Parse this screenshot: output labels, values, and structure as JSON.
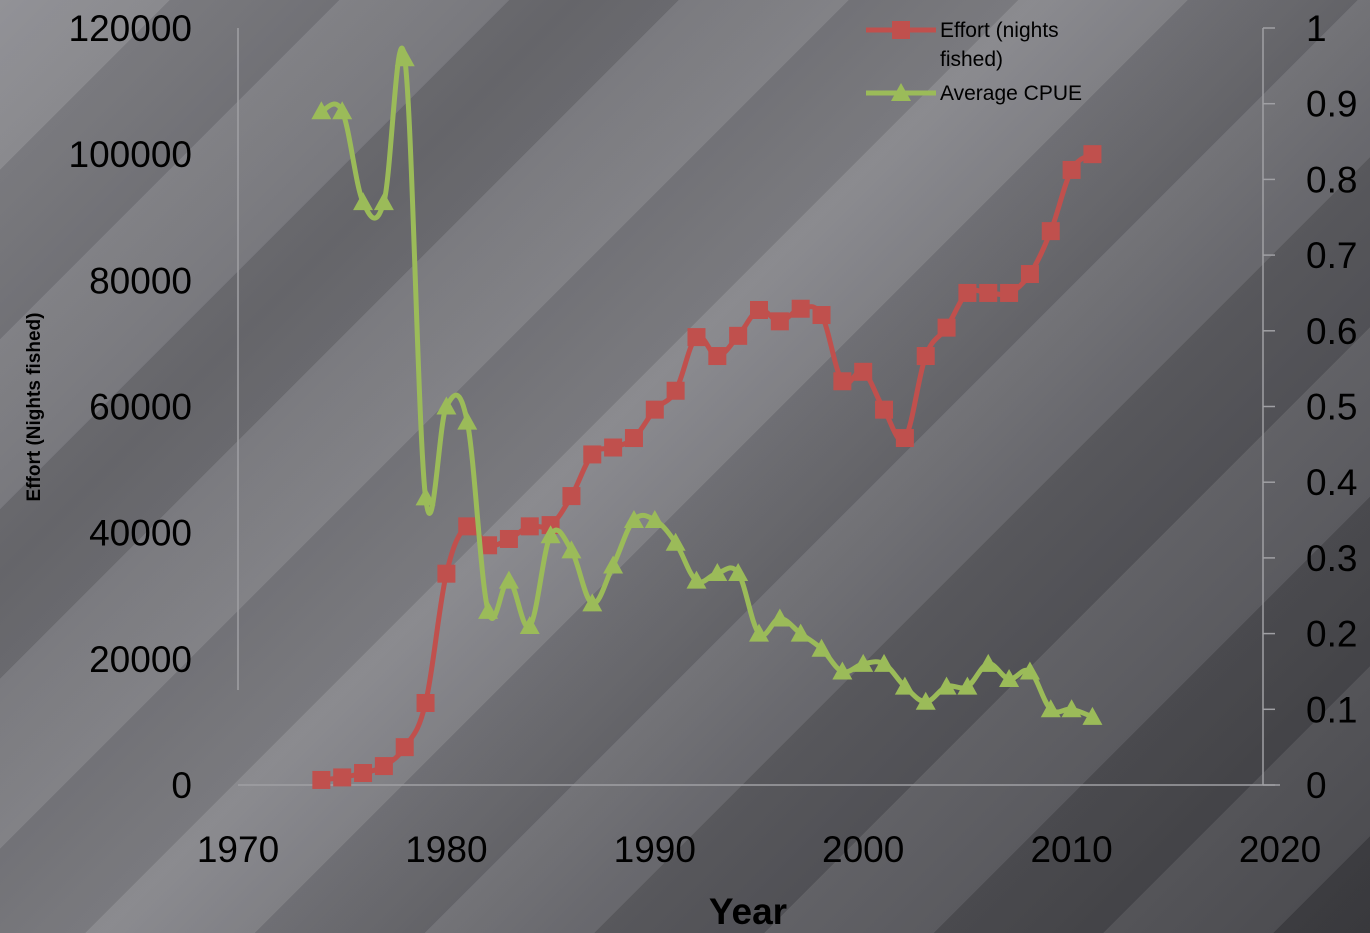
{
  "chart_data": {
    "type": "line",
    "title": "",
    "xlabel": "Year",
    "ylabel": "Effort (Nights fished)",
    "y2label": "",
    "xlim": [
      1970,
      2020
    ],
    "ylim": [
      0,
      120000
    ],
    "y2lim": [
      0,
      1
    ],
    "x_ticks": [
      1970,
      1980,
      1990,
      2000,
      2010,
      2020
    ],
    "y_ticks": [
      0,
      20000,
      40000,
      60000,
      80000,
      100000,
      120000
    ],
    "y2_ticks": [
      0,
      0.1,
      0.2,
      0.3,
      0.4,
      0.5,
      0.6,
      0.7,
      0.8,
      0.9,
      1
    ],
    "legend_position": "top-right",
    "grid": false,
    "series": [
      {
        "name": "Effort (nights fished)",
        "axis": "left",
        "color": "#c0504d",
        "marker": "square",
        "x": [
          1974,
          1975,
          1976,
          1977,
          1978,
          1979,
          1980,
          1981,
          1982,
          1983,
          1984,
          1985,
          1986,
          1987,
          1988,
          1989,
          1990,
          1991,
          1992,
          1993,
          1994,
          1995,
          1996,
          1997,
          1998,
          1999,
          2000,
          2001,
          2002,
          2003,
          2004,
          2005,
          2006,
          2007,
          2008,
          2009,
          2010,
          2011
        ],
        "values": [
          800,
          1200,
          1900,
          3000,
          6000,
          13000,
          33500,
          41000,
          38000,
          39000,
          41000,
          41200,
          45800,
          52400,
          53500,
          55000,
          59500,
          62500,
          71000,
          68000,
          71200,
          75300,
          73500,
          75500,
          74500,
          64000,
          65500,
          59500,
          55000,
          68000,
          72500,
          78000,
          78000,
          78000,
          81000,
          87800,
          97500,
          100000
        ]
      },
      {
        "name": "Average CPUE",
        "axis": "right",
        "color": "#9bbb59",
        "marker": "triangle",
        "x": [
          1974,
          1975,
          1976,
          1977,
          1978,
          1979,
          1980,
          1981,
          1982,
          1983,
          1984,
          1985,
          1986,
          1987,
          1988,
          1989,
          1990,
          1991,
          1992,
          1993,
          1994,
          1995,
          1996,
          1997,
          1998,
          1999,
          2000,
          2001,
          2002,
          2003,
          2004,
          2005,
          2006,
          2007,
          2008,
          2009,
          2010,
          2011
        ],
        "values": [
          0.89,
          0.89,
          0.77,
          0.77,
          0.96,
          0.38,
          0.5,
          0.48,
          0.23,
          0.27,
          0.21,
          0.33,
          0.31,
          0.24,
          0.29,
          0.35,
          0.35,
          0.32,
          0.27,
          0.28,
          0.28,
          0.2,
          0.22,
          0.2,
          0.18,
          0.15,
          0.16,
          0.16,
          0.13,
          0.11,
          0.13,
          0.13,
          0.16,
          0.14,
          0.15,
          0.1,
          0.1,
          0.09
        ]
      }
    ],
    "legend": {
      "entries": [
        {
          "lines": [
            "Effort (nights",
            "fished)"
          ]
        },
        {
          "lines": [
            "Average CPUE"
          ]
        }
      ]
    }
  }
}
